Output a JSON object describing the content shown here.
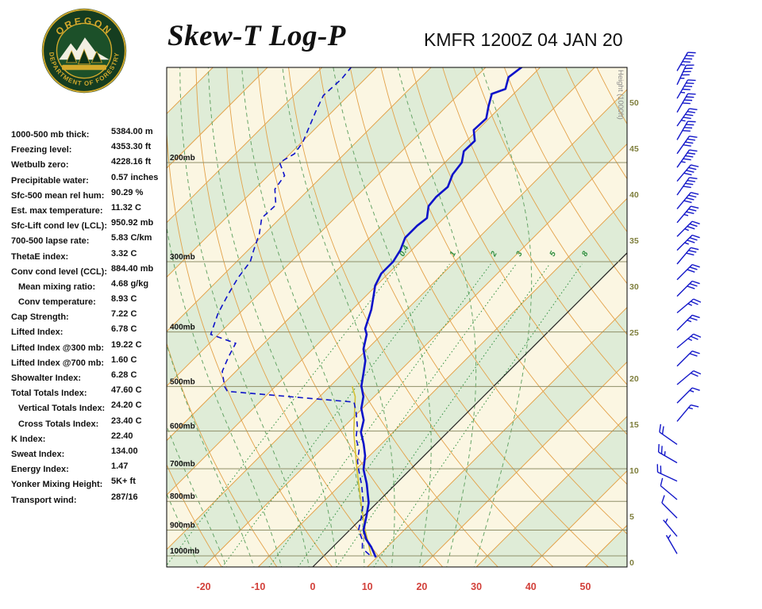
{
  "header": {
    "title": "Skew-T Log-P",
    "station_line": "KMFR 1200Z 04 JAN 20",
    "logo": {
      "org_top": "OREGON",
      "org_bottom": "DEPARTMENT OF FORESTRY"
    }
  },
  "indices": [
    {
      "label": "1000-500 mb thick:",
      "value": "5384.00 m"
    },
    {
      "label": "Freezing level:",
      "value": "4353.30 ft"
    },
    {
      "label": "Wetbulb zero:",
      "value": "4228.16 ft"
    },
    {
      "label": "Precipitable water:",
      "value": "0.57 inches"
    },
    {
      "label": "Sfc-500 mean rel hum:",
      "value": "90.29 %"
    },
    {
      "label": "Est. max temperature:",
      "value": "11.32 C"
    },
    {
      "label": "Sfc-Lift cond lev (LCL):",
      "value": "950.92 mb"
    },
    {
      "label": "700-500 lapse rate:",
      "value": "5.83 C/km"
    },
    {
      "label": "ThetaE index:",
      "value": "3.32 C"
    },
    {
      "label": "Conv cond level (CCL):",
      "value": "884.40 mb"
    },
    {
      "label": "Mean mixing ratio:",
      "value": "4.68 g/kg",
      "indent": true
    },
    {
      "label": "Conv temperature:",
      "value": "8.93 C",
      "indent": true
    },
    {
      "label": "Cap Strength:",
      "value": "7.22 C"
    },
    {
      "label": "Lifted Index:",
      "value": "6.78 C"
    },
    {
      "label": "Lifted Index @300 mb:",
      "value": "19.22 C"
    },
    {
      "label": "Lifted Index @700 mb:",
      "value": "1.60 C"
    },
    {
      "label": "Showalter Index:",
      "value": "6.28 C"
    },
    {
      "label": "Total Totals Index:",
      "value": "47.60 C"
    },
    {
      "label": "Vertical Totals Index:",
      "value": "24.20 C",
      "indent": true
    },
    {
      "label": "Cross Totals Index:",
      "value": "23.40 C",
      "indent": true
    },
    {
      "label": "K Index:",
      "value": "22.40"
    },
    {
      "label": "Sweat Index:",
      "value": "134.00"
    },
    {
      "label": "Energy Index:",
      "value": "1.47"
    },
    {
      "label": "Yonker Mixing Height:",
      "value": "5K+ ft"
    },
    {
      "label": "Transport wind:",
      "value": "287/16"
    }
  ],
  "chart_data": {
    "type": "skewt_log_p",
    "x_axis": {
      "unit": "C",
      "ticks_c": [
        -20,
        -10,
        0,
        10,
        20,
        30,
        40,
        50
      ]
    },
    "pressure_levels_mb": [
      200,
      300,
      400,
      500,
      600,
      700,
      800,
      900,
      1000
    ],
    "height_scale": {
      "title": "Height (1000ft)",
      "ticks_kft": [
        0,
        5,
        10,
        15,
        20,
        25,
        30,
        35,
        40,
        45,
        50
      ]
    },
    "isopleths": {
      "isotherm_step_c": 10,
      "dry_adiabats_c": [
        -30,
        170,
        10
      ],
      "moist_adiabats_c": [
        -20,
        30,
        5
      ],
      "mixing_ratio_g_kg": [
        0.4,
        1,
        2,
        3,
        5,
        8
      ],
      "freezing_isotherm_c": 0
    },
    "temperature_profile": [
      [
        135,
        -53.4
      ],
      [
        141,
        -54.0
      ],
      [
        148,
        -52.4
      ],
      [
        151,
        -54.0
      ],
      [
        159,
        -52.3
      ],
      [
        167,
        -50.5
      ],
      [
        175,
        -50.7
      ],
      [
        183,
        -48.5
      ],
      [
        191,
        -48.6
      ],
      [
        200,
        -46.9
      ],
      [
        210,
        -46.4
      ],
      [
        221,
        -45.0
      ],
      [
        230,
        -45.3
      ],
      [
        239,
        -45.0
      ],
      [
        251,
        -43.1
      ],
      [
        259,
        -43.5
      ],
      [
        272,
        -43.5
      ],
      [
        286,
        -42.1
      ],
      [
        300,
        -41.3
      ],
      [
        315,
        -41.3
      ],
      [
        331,
        -40.2
      ],
      [
        347,
        -38.4
      ],
      [
        365,
        -36.5
      ],
      [
        395,
        -34.1
      ],
      [
        404,
        -32.8
      ],
      [
        429,
        -30.7
      ],
      [
        450,
        -28.2
      ],
      [
        473,
        -26.3
      ],
      [
        499,
        -24.3
      ],
      [
        521,
        -22.0
      ],
      [
        547,
        -20.2
      ],
      [
        574,
        -17.6
      ],
      [
        603,
        -15.9
      ],
      [
        633,
        -13.2
      ],
      [
        664,
        -10.8
      ],
      [
        702,
        -8.6
      ],
      [
        744,
        -5.4
      ],
      [
        805,
        -1.5
      ],
      [
        847,
        0.4
      ],
      [
        899,
        2.5
      ],
      [
        934,
        4.7
      ],
      [
        965,
        7.1
      ],
      [
        1006,
        9.8
      ]
    ],
    "dewpoint_profile": [
      [
        135,
        -84.7
      ],
      [
        142,
        -84.3
      ],
      [
        152,
        -84.6
      ],
      [
        162,
        -83.1
      ],
      [
        173,
        -81.4
      ],
      [
        184,
        -79.8
      ],
      [
        193,
        -79.2
      ],
      [
        200,
        -80.3
      ],
      [
        211,
        -77.0
      ],
      [
        223,
        -76.3
      ],
      [
        238,
        -73.2
      ],
      [
        251,
        -73.4
      ],
      [
        268,
        -70.9
      ],
      [
        286,
        -69.0
      ],
      [
        300,
        -67.5
      ],
      [
        320,
        -66.8
      ],
      [
        342,
        -65.6
      ],
      [
        371,
        -63.9
      ],
      [
        404,
        -61.4
      ],
      [
        419,
        -55.2
      ],
      [
        443,
        -54.0
      ],
      [
        470,
        -52.5
      ],
      [
        500,
        -49.3
      ],
      [
        510,
        -47.9
      ],
      [
        533,
        -22.7
      ],
      [
        555,
        -20.5
      ],
      [
        589,
        -17.6
      ],
      [
        618,
        -15.7
      ],
      [
        648,
        -13.0
      ],
      [
        679,
        -11.2
      ],
      [
        702,
        -9.5
      ],
      [
        748,
        -6.1
      ],
      [
        805,
        -2.5
      ],
      [
        852,
        -0.3
      ],
      [
        899,
        1.6
      ],
      [
        938,
        4.2
      ],
      [
        970,
        5.7
      ],
      [
        996,
        8.2
      ],
      [
        1006,
        9.0
      ]
    ],
    "parcel_profile": [
      [
        499,
        -26.0
      ],
      [
        521,
        -23.5
      ],
      [
        603,
        -17.2
      ],
      [
        702,
        -9.8
      ],
      [
        805,
        -2.9
      ],
      [
        899,
        2.8
      ],
      [
        1000,
        8.7
      ]
    ],
    "wind_barbs": [
      {
        "alt_kft": 53.5,
        "dir": 30,
        "spd": 45
      },
      {
        "alt_kft": 52.0,
        "dir": 25,
        "spd": 45
      },
      {
        "alt_kft": 50.5,
        "dir": 30,
        "spd": 45
      },
      {
        "alt_kft": 49.0,
        "dir": 30,
        "spd": 40
      },
      {
        "alt_kft": 47.5,
        "dir": 35,
        "spd": 45
      },
      {
        "alt_kft": 46.0,
        "dir": 30,
        "spd": 40
      },
      {
        "alt_kft": 44.5,
        "dir": 35,
        "spd": 40
      },
      {
        "alt_kft": 43.0,
        "dir": 35,
        "spd": 45
      },
      {
        "alt_kft": 41.5,
        "dir": 40,
        "spd": 40
      },
      {
        "alt_kft": 40.0,
        "dir": 35,
        "spd": 40
      },
      {
        "alt_kft": 38.5,
        "dir": 40,
        "spd": 40
      },
      {
        "alt_kft": 37.0,
        "dir": 40,
        "spd": 35
      },
      {
        "alt_kft": 35.5,
        "dir": 45,
        "spd": 35
      },
      {
        "alt_kft": 34.0,
        "dir": 45,
        "spd": 35
      },
      {
        "alt_kft": 32.5,
        "dir": 40,
        "spd": 30
      },
      {
        "alt_kft": 30.8,
        "dir": 45,
        "spd": 30
      },
      {
        "alt_kft": 29.0,
        "dir": 45,
        "spd": 30
      },
      {
        "alt_kft": 27.2,
        "dir": 50,
        "spd": 25
      },
      {
        "alt_kft": 25.3,
        "dir": 45,
        "spd": 25
      },
      {
        "alt_kft": 23.4,
        "dir": 50,
        "spd": 25
      },
      {
        "alt_kft": 21.4,
        "dir": 45,
        "spd": 20
      },
      {
        "alt_kft": 19.4,
        "dir": 50,
        "spd": 20
      },
      {
        "alt_kft": 17.4,
        "dir": 45,
        "spd": 15
      },
      {
        "alt_kft": 15.4,
        "dir": 40,
        "spd": 15
      },
      {
        "alt_kft": 12.9,
        "dir": 305,
        "spd": 20
      },
      {
        "alt_kft": 10.9,
        "dir": 300,
        "spd": 25
      },
      {
        "alt_kft": 8.9,
        "dir": 295,
        "spd": 20
      },
      {
        "alt_kft": 6.9,
        "dir": 310,
        "spd": 10
      },
      {
        "alt_kft": 4.9,
        "dir": 315,
        "spd": 10
      },
      {
        "alt_kft": 2.9,
        "dir": 320,
        "spd": 5
      },
      {
        "alt_kft": 1.0,
        "dir": 330,
        "spd": 5
      }
    ],
    "colors": {
      "band_cream": "#fbf6e2",
      "band_green": "#dfecd7",
      "isotherm": "#e3a24a",
      "moist": "#67a567",
      "mixing": "#2f8f3f",
      "pressure_line": "#8f8f68",
      "pressure_label": "#111111",
      "temp_label": "#d2403a",
      "height_label": "#7e7e3c",
      "height_title": "#8a8a8a",
      "trace": "#0d12c9",
      "parcel": "#d2bf35",
      "barb": "#1317c9",
      "freezing": "#222222"
    }
  }
}
